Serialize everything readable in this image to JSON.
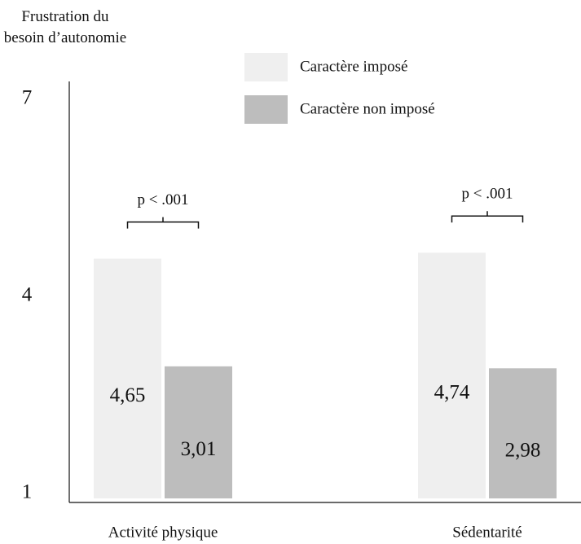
{
  "chart_data": {
    "type": "bar",
    "y_label": "Frustration du besoin d’autonomie",
    "categories": [
      "Activité physique",
      "Sédentarité"
    ],
    "series": [
      {
        "name": "Caractère imposé",
        "color": "#efefef",
        "values": [
          4.65,
          4.74
        ],
        "value_labels": [
          "4,65",
          "4,74"
        ]
      },
      {
        "name": "Caractère non imposé",
        "color": "#bdbdbd",
        "values": [
          3.01,
          2.98
        ],
        "value_labels": [
          "3,01",
          "2,98"
        ]
      }
    ],
    "annotations": [
      "p < .001",
      "p < .001"
    ],
    "ylim": [
      1,
      7
    ],
    "yticks": [
      1,
      4,
      7
    ],
    "grid": false,
    "legend": "top"
  }
}
